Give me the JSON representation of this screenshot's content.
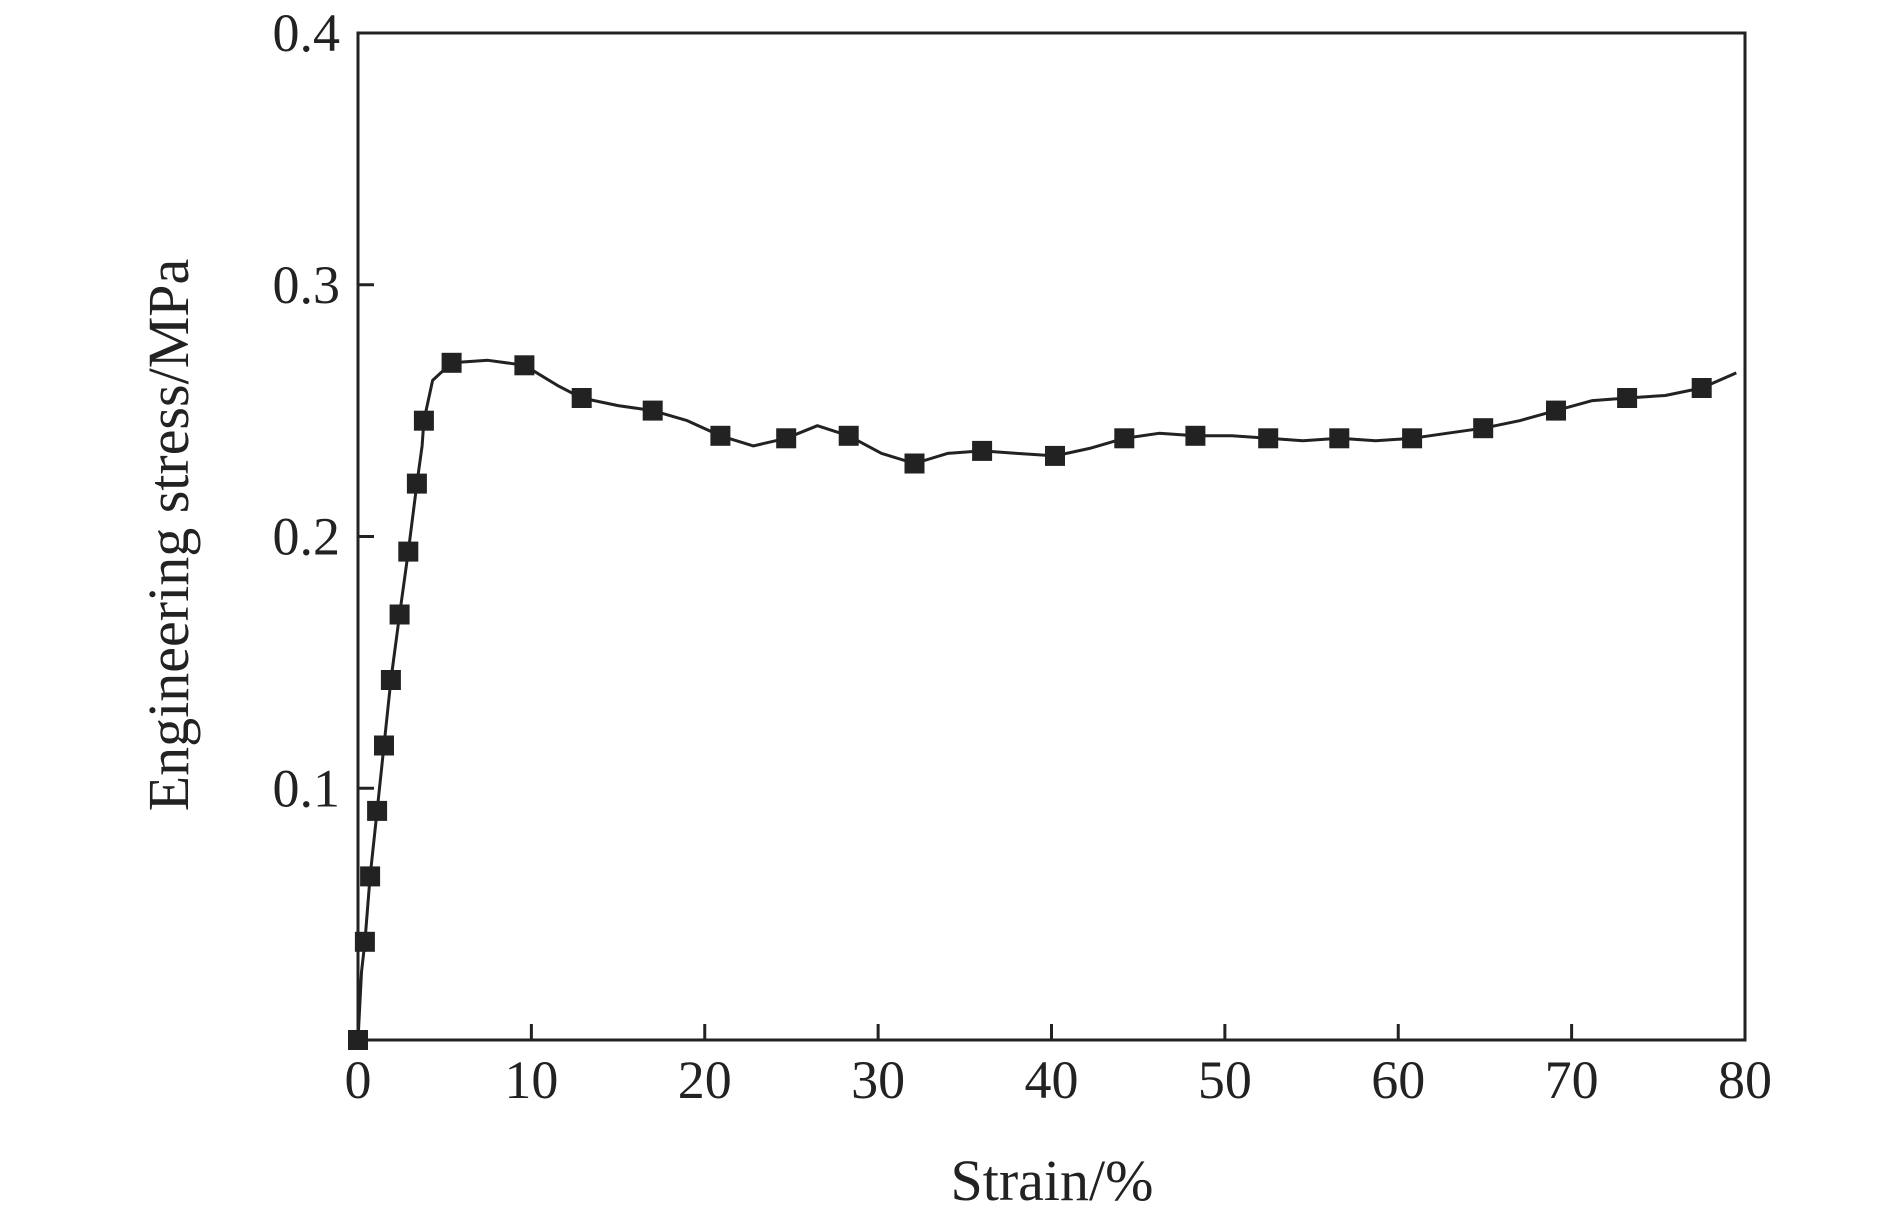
{
  "chart_data": {
    "type": "line",
    "xlabel": "Strain/%",
    "ylabel": "Engineering stress/MPa",
    "xlim": [
      0,
      80
    ],
    "ylim": [
      0,
      0.4
    ],
    "x_ticks": [
      0,
      10,
      20,
      30,
      40,
      50,
      60,
      70,
      80
    ],
    "y_ticks": [
      0.1,
      0.2,
      0.3,
      0.4
    ],
    "x_tick_labels": [
      "0",
      "10",
      "20",
      "30",
      "40",
      "50",
      "60",
      "70",
      "80"
    ],
    "y_tick_labels": [
      "0.1",
      "0.2",
      "0.3",
      "0.4"
    ],
    "grid": false,
    "marker": "square",
    "series": [
      {
        "color": "#222222",
        "x": [
          0.0,
          0.4,
          0.7,
          1.1,
          1.5,
          1.9,
          2.4,
          2.9,
          3.4,
          3.8,
          5.4,
          9.6,
          12.9,
          17.0,
          20.9,
          24.7,
          28.3,
          32.1,
          36.0,
          40.2,
          44.2,
          48.3,
          52.5,
          56.6,
          60.8,
          64.9,
          69.1,
          73.2,
          77.5
        ],
        "y": [
          0.0,
          0.039,
          0.065,
          0.091,
          0.117,
          0.143,
          0.169,
          0.194,
          0.221,
          0.246,
          0.269,
          0.268,
          0.255,
          0.25,
          0.24,
          0.239,
          0.24,
          0.229,
          0.234,
          0.232,
          0.239,
          0.24,
          0.239,
          0.239,
          0.239,
          0.243,
          0.25,
          0.255,
          0.259
        ]
      }
    ],
    "curve": {
      "x": [
        0.0,
        0.2,
        0.4,
        0.7,
        1.1,
        1.5,
        1.9,
        2.4,
        2.9,
        3.4,
        3.7,
        3.8,
        4.3,
        5.4,
        7.5,
        9.6,
        11.5,
        12.9,
        15.0,
        17.0,
        19.0,
        20.9,
        22.8,
        24.7,
        26.5,
        28.3,
        30.2,
        32.1,
        34.0,
        36.0,
        38.0,
        40.2,
        42.2,
        44.2,
        46.2,
        48.3,
        50.4,
        52.5,
        54.5,
        56.6,
        58.7,
        60.8,
        62.8,
        64.9,
        67.0,
        69.1,
        71.2,
        73.2,
        75.4,
        77.5,
        79.5
      ],
      "y": [
        0.0,
        0.027,
        0.039,
        0.065,
        0.091,
        0.117,
        0.143,
        0.169,
        0.194,
        0.221,
        0.236,
        0.246,
        0.262,
        0.269,
        0.27,
        0.268,
        0.26,
        0.255,
        0.252,
        0.25,
        0.246,
        0.24,
        0.236,
        0.239,
        0.244,
        0.24,
        0.233,
        0.229,
        0.233,
        0.234,
        0.233,
        0.232,
        0.235,
        0.239,
        0.241,
        0.24,
        0.24,
        0.239,
        0.238,
        0.239,
        0.238,
        0.239,
        0.241,
        0.243,
        0.246,
        0.25,
        0.254,
        0.255,
        0.256,
        0.259,
        0.265
      ]
    }
  }
}
